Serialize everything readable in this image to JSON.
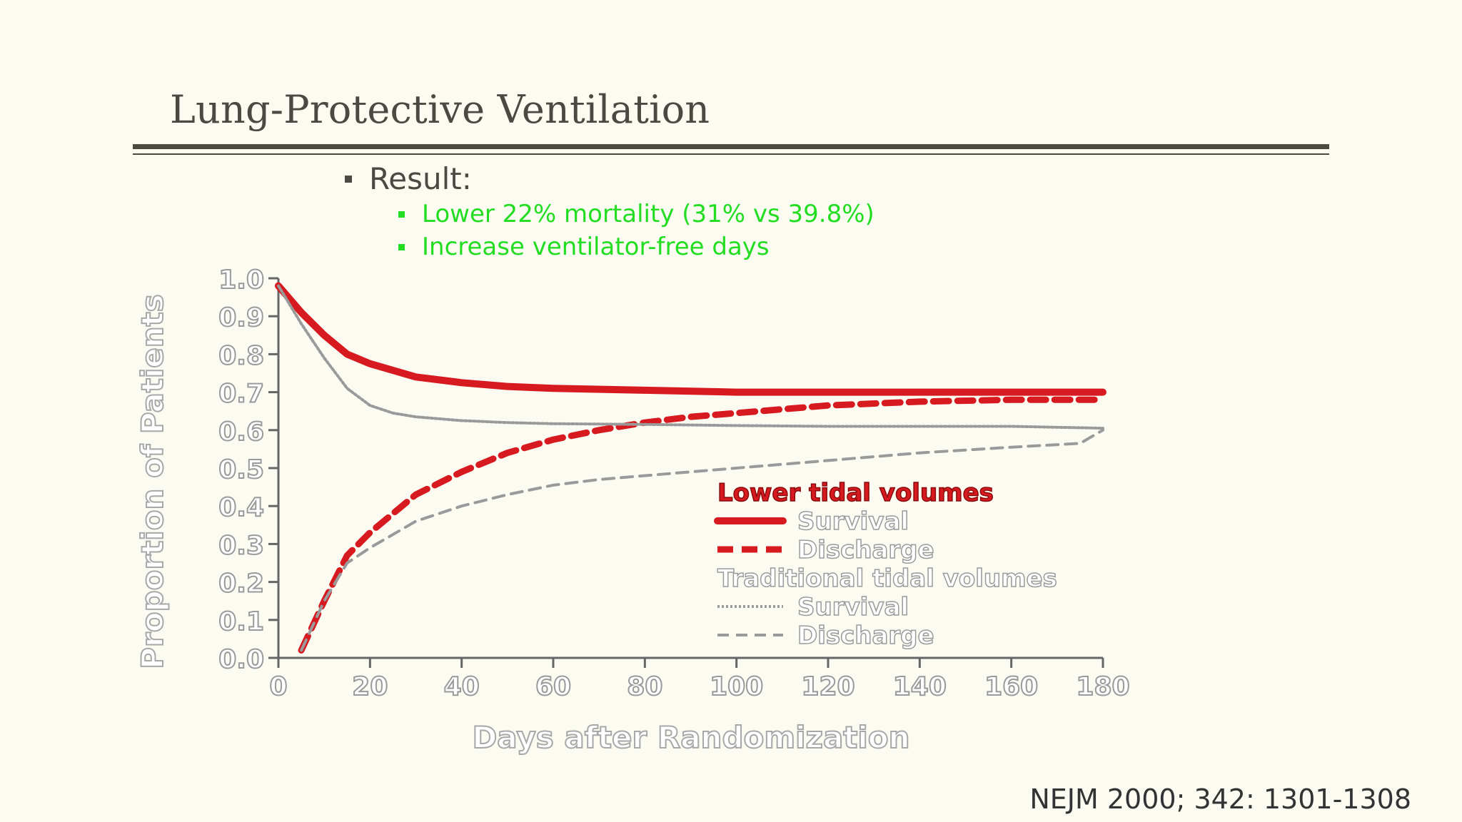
{
  "slide": {
    "title": "Lung-Protective Ventilation",
    "bullet": "Result:",
    "sub_bullets": [
      "Lower 22% mortality (31% vs 39.8%)",
      "Increase ventilator-free days"
    ],
    "citation": "NEJM 2000; 342: 1301-1308"
  },
  "colors": {
    "background": "#fcfbf2",
    "text": "#4a4a42",
    "bullet_green": "#22dd22",
    "lower_tidal": "#d71920",
    "traditional_tidal": "#9a9a9a"
  },
  "chart_data": {
    "type": "line",
    "xlabel": "Days after Randomization",
    "ylabel": "Proportion of Patients",
    "xlim": [
      0,
      180
    ],
    "ylim": [
      0,
      1.0
    ],
    "xticks": [
      0,
      20,
      40,
      60,
      80,
      100,
      120,
      140,
      160,
      180
    ],
    "yticks": [
      0.0,
      0.1,
      0.2,
      0.3,
      0.4,
      0.5,
      0.6,
      0.7,
      0.8,
      0.9,
      1.0
    ],
    "ytick_labels": [
      "0.0",
      "0.1",
      "0.2",
      "0.3",
      "0.4",
      "0.5",
      "0.6",
      "0.7",
      "0.8",
      "0.9",
      "1.0"
    ],
    "grid": false,
    "legend_position": "center-right",
    "legend": {
      "group1_title": "Lower tidal volumes",
      "group2_title": "Traditional tidal volumes",
      "survival_label": "Survival",
      "discharge_label": "Discharge"
    },
    "series": [
      {
        "group": "Lower tidal volumes",
        "name": "Survival",
        "style": "solid",
        "color": "#d71920",
        "x": [
          0,
          5,
          10,
          15,
          20,
          30,
          40,
          50,
          60,
          80,
          100,
          120,
          140,
          160,
          180
        ],
        "y": [
          0.98,
          0.91,
          0.85,
          0.8,
          0.775,
          0.74,
          0.725,
          0.715,
          0.71,
          0.705,
          0.7,
          0.7,
          0.7,
          0.7,
          0.7
        ]
      },
      {
        "group": "Lower tidal volumes",
        "name": "Discharge",
        "style": "dashed",
        "color": "#d71920",
        "x": [
          5,
          10,
          15,
          20,
          30,
          40,
          50,
          60,
          70,
          80,
          90,
          100,
          120,
          140,
          160,
          180
        ],
        "y": [
          0.02,
          0.15,
          0.27,
          0.33,
          0.43,
          0.49,
          0.54,
          0.575,
          0.6,
          0.62,
          0.635,
          0.645,
          0.665,
          0.675,
          0.68,
          0.68
        ]
      },
      {
        "group": "Traditional tidal volumes",
        "name": "Survival",
        "style": "dotted",
        "color": "#9a9a9a",
        "x": [
          0,
          5,
          10,
          15,
          20,
          25,
          30,
          40,
          50,
          60,
          80,
          100,
          120,
          140,
          160,
          180
        ],
        "y": [
          0.98,
          0.88,
          0.79,
          0.71,
          0.665,
          0.645,
          0.635,
          0.625,
          0.62,
          0.617,
          0.615,
          0.612,
          0.61,
          0.61,
          0.61,
          0.605
        ]
      },
      {
        "group": "Traditional tidal volumes",
        "name": "Discharge",
        "style": "dashed",
        "color": "#9a9a9a",
        "x": [
          5,
          10,
          15,
          20,
          30,
          40,
          50,
          60,
          70,
          80,
          90,
          100,
          120,
          140,
          160,
          175,
          180
        ],
        "y": [
          0.02,
          0.15,
          0.25,
          0.29,
          0.36,
          0.4,
          0.43,
          0.455,
          0.47,
          0.48,
          0.49,
          0.5,
          0.52,
          0.54,
          0.555,
          0.565,
          0.6
        ]
      }
    ]
  }
}
